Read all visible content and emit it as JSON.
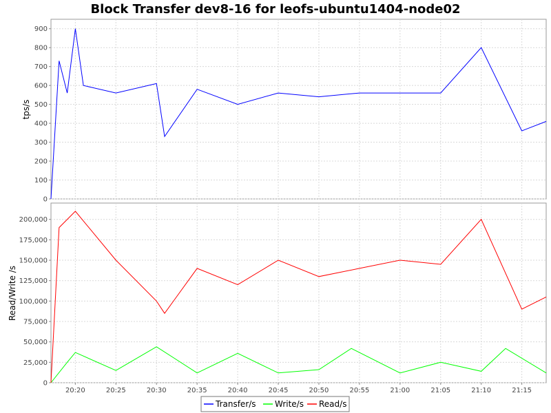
{
  "chart_data": [
    {
      "type": "line",
      "title": "Block Transfer dev8-16 for leofs-ubuntu1404-node02",
      "ylabel": "tps/s",
      "ylim": [
        0,
        950
      ],
      "yticks": [
        0,
        100,
        200,
        300,
        400,
        500,
        600,
        700,
        800,
        900
      ],
      "ytick_labels": [
        "0",
        "100",
        "200",
        "300",
        "400",
        "500",
        "600",
        "700",
        "800",
        "900"
      ],
      "x_start": "20:17",
      "x_end": "21:18",
      "xticks": [
        "20:20",
        "20:25",
        "20:30",
        "20:35",
        "20:40",
        "20:45",
        "20:50",
        "20:55",
        "21:00",
        "21:05",
        "21:10",
        "21:15"
      ],
      "grid": true,
      "series": [
        {
          "name": "Transfer/s",
          "color": "#0000ff",
          "x": [
            "20:17",
            "20:18",
            "20:19",
            "20:20",
            "20:21",
            "20:25",
            "20:30",
            "20:31",
            "20:35",
            "20:40",
            "20:45",
            "20:50",
            "20:55",
            "21:00",
            "21:05",
            "21:10",
            "21:15",
            "21:18"
          ],
          "values": [
            0,
            730,
            560,
            900,
            600,
            560,
            610,
            330,
            580,
            500,
            560,
            540,
            560,
            560,
            560,
            800,
            360,
            410
          ]
        }
      ]
    },
    {
      "type": "line",
      "ylabel": "Read/Write /s",
      "ylim": [
        0,
        220000
      ],
      "yticks": [
        0,
        25000,
        50000,
        75000,
        100000,
        125000,
        150000,
        175000,
        200000
      ],
      "ytick_labels": [
        "0",
        "25,000",
        "50,000",
        "75,000",
        "100,000",
        "125,000",
        "150,000",
        "175,000",
        "200,000"
      ],
      "x_start": "20:17",
      "x_end": "21:18",
      "xticks": [
        "20:20",
        "20:25",
        "20:30",
        "20:35",
        "20:40",
        "20:45",
        "20:50",
        "20:55",
        "21:00",
        "21:05",
        "21:10",
        "21:15"
      ],
      "xtick_labels": [
        "20:20",
        "20:25",
        "20:30",
        "20:35",
        "20:40",
        "20:45",
        "20:50",
        "20:55",
        "21:00",
        "21:05",
        "21:10",
        "21:15"
      ],
      "grid": true,
      "series": [
        {
          "name": "Write/s",
          "color": "#00ff00",
          "x": [
            "20:17",
            "20:19",
            "20:20",
            "20:25",
            "20:30",
            "20:35",
            "20:40",
            "20:45",
            "20:50",
            "20:54",
            "21:00",
            "21:05",
            "21:10",
            "21:13",
            "21:18"
          ],
          "values": [
            0,
            25000,
            37000,
            15000,
            44000,
            12000,
            36000,
            12000,
            16000,
            42000,
            12000,
            25000,
            14000,
            42000,
            12000
          ]
        },
        {
          "name": "Read/s",
          "color": "#ff0000",
          "x": [
            "20:17",
            "20:18",
            "20:20",
            "20:25",
            "20:30",
            "20:31",
            "20:35",
            "20:40",
            "20:45",
            "20:50",
            "20:55",
            "21:00",
            "21:05",
            "21:10",
            "21:15",
            "21:18"
          ],
          "values": [
            0,
            190000,
            210000,
            150000,
            100000,
            85000,
            140000,
            120000,
            150000,
            130000,
            140000,
            150000,
            145000,
            200000,
            90000,
            105000
          ]
        }
      ]
    }
  ],
  "legend": {
    "placement": "bottom-center",
    "entries": [
      {
        "label": "Transfer/s",
        "color": "#0000ff"
      },
      {
        "label": "Write/s",
        "color": "#00ff00"
      },
      {
        "label": "Read/s",
        "color": "#ff0000"
      }
    ]
  }
}
